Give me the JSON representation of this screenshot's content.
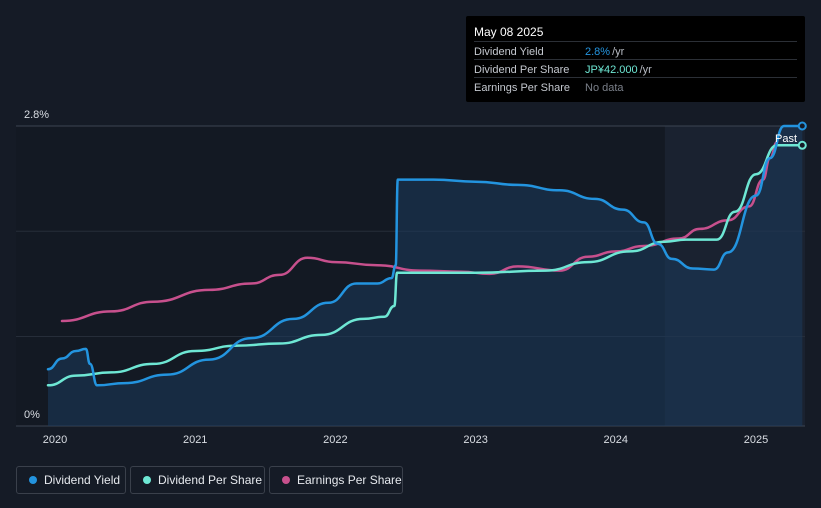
{
  "tooltip": {
    "date": "May 08 2025",
    "rows": [
      {
        "label": "Dividend Yield",
        "value": "2.8%",
        "unit": "/yr",
        "color": "#2394df"
      },
      {
        "label": "Dividend Per Share",
        "value": "JP¥42.000",
        "unit": "/yr",
        "color": "#6ee7d4"
      },
      {
        "label": "Earnings Per Share",
        "value": "No data",
        "unit": "",
        "color": "#7b808a"
      }
    ]
  },
  "legend": [
    {
      "label": "Dividend Yield",
      "color": "#2394df"
    },
    {
      "label": "Dividend Per Share",
      "color": "#6ee7d4"
    },
    {
      "label": "Earnings Per Share",
      "color": "#c7508d"
    }
  ],
  "chart_data": {
    "type": "line",
    "y_tick_labels": [
      "2.8%",
      "0%"
    ],
    "ylim": [
      0,
      2.8
    ],
    "x_ticks": [
      "2020",
      "2021",
      "2022",
      "2023",
      "2024",
      "2025"
    ],
    "past_label": "Past",
    "grid": true,
    "series": [
      {
        "name": "Dividend Yield",
        "color": "#2394df",
        "points": [
          [
            2019.95,
            0.53
          ],
          [
            2020.05,
            0.63
          ],
          [
            2020.15,
            0.7
          ],
          [
            2020.22,
            0.72
          ],
          [
            2020.25,
            0.58
          ],
          [
            2020.3,
            0.38
          ],
          [
            2020.5,
            0.4
          ],
          [
            2020.8,
            0.48
          ],
          [
            2021.1,
            0.62
          ],
          [
            2021.4,
            0.82
          ],
          [
            2021.7,
            1.0
          ],
          [
            2021.95,
            1.15
          ],
          [
            2022.15,
            1.33
          ],
          [
            2022.3,
            1.33
          ],
          [
            2022.4,
            1.38
          ],
          [
            2022.43,
            1.5
          ],
          [
            2022.445,
            2.3
          ],
          [
            2022.7,
            2.3
          ],
          [
            2023.0,
            2.28
          ],
          [
            2023.3,
            2.25
          ],
          [
            2023.6,
            2.2
          ],
          [
            2023.85,
            2.12
          ],
          [
            2024.05,
            2.02
          ],
          [
            2024.2,
            1.9
          ],
          [
            2024.3,
            1.7
          ],
          [
            2024.4,
            1.56
          ],
          [
            2024.55,
            1.47
          ],
          [
            2024.7,
            1.46
          ],
          [
            2024.8,
            1.62
          ],
          [
            2025.0,
            2.15
          ],
          [
            2025.1,
            2.5
          ],
          [
            2025.2,
            2.8
          ],
          [
            2025.33,
            2.8
          ]
        ]
      },
      {
        "name": "Dividend Per Share",
        "color": "#6ee7d4",
        "points": [
          [
            2019.95,
            0.38
          ],
          [
            2020.15,
            0.47
          ],
          [
            2020.4,
            0.5
          ],
          [
            2020.7,
            0.58
          ],
          [
            2021.0,
            0.7
          ],
          [
            2021.3,
            0.75
          ],
          [
            2021.6,
            0.77
          ],
          [
            2021.9,
            0.85
          ],
          [
            2022.2,
            1.0
          ],
          [
            2022.35,
            1.02
          ],
          [
            2022.42,
            1.12
          ],
          [
            2022.44,
            1.43
          ],
          [
            2023.0,
            1.43
          ],
          [
            2023.5,
            1.45
          ],
          [
            2023.8,
            1.53
          ],
          [
            2024.1,
            1.63
          ],
          [
            2024.35,
            1.72
          ],
          [
            2024.5,
            1.74
          ],
          [
            2024.72,
            1.74
          ],
          [
            2024.85,
            2.0
          ],
          [
            2025.0,
            2.35
          ],
          [
            2025.15,
            2.62
          ],
          [
            2025.33,
            2.62
          ]
        ]
      },
      {
        "name": "Earnings Per Share",
        "color": "#c7508d",
        "points": [
          [
            2020.05,
            0.98
          ],
          [
            2020.4,
            1.07
          ],
          [
            2020.7,
            1.16
          ],
          [
            2021.1,
            1.27
          ],
          [
            2021.4,
            1.33
          ],
          [
            2021.6,
            1.41
          ],
          [
            2021.8,
            1.57
          ],
          [
            2022.0,
            1.53
          ],
          [
            2022.3,
            1.5
          ],
          [
            2022.6,
            1.45
          ],
          [
            2022.9,
            1.44
          ],
          [
            2023.1,
            1.42
          ],
          [
            2023.3,
            1.49
          ],
          [
            2023.6,
            1.45
          ],
          [
            2023.8,
            1.58
          ],
          [
            2024.0,
            1.63
          ],
          [
            2024.2,
            1.68
          ],
          [
            2024.45,
            1.75
          ],
          [
            2024.6,
            1.84
          ],
          [
            2024.8,
            1.92
          ],
          [
            2024.95,
            2.05
          ],
          [
            2025.05,
            2.3
          ],
          [
            2025.1,
            2.5
          ],
          [
            2025.15,
            2.65
          ]
        ]
      }
    ]
  }
}
